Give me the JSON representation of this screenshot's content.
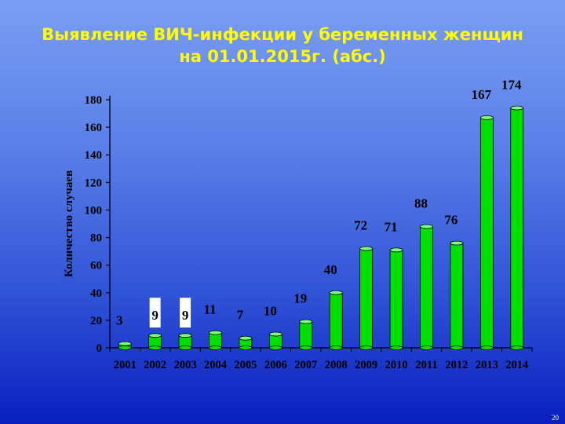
{
  "slide": {
    "title_line1": "Выявление ВИЧ-инфекции у беременных женщин",
    "title_line2": "на 01.01.2015г. (абс.)",
    "page_number": "20"
  },
  "colors": {
    "bar_fill": "#00e000",
    "bar_top": "#7cff7c",
    "title": "#ffff00",
    "label_box": "#ffffff"
  },
  "chart_data": {
    "type": "bar",
    "title": "Выявление ВИЧ-инфекции у беременных женщин на 01.01.2015г. (абс.)",
    "xlabel": "",
    "ylabel": "Количество случаев",
    "categories": [
      "2001",
      "2002",
      "2003",
      "2004",
      "2005",
      "2006",
      "2007",
      "2008",
      "2009",
      "2010",
      "2011",
      "2012",
      "2013",
      "2014"
    ],
    "values": [
      3,
      9,
      9,
      11,
      7,
      10,
      19,
      40,
      72,
      71,
      88,
      76,
      167,
      174
    ],
    "boxed_labels": [
      "2002",
      "2003"
    ],
    "ylim": [
      0,
      180
    ],
    "yticks": [
      0,
      20,
      40,
      60,
      80,
      100,
      120,
      140,
      160,
      180
    ],
    "grid": false,
    "legend": "none"
  }
}
